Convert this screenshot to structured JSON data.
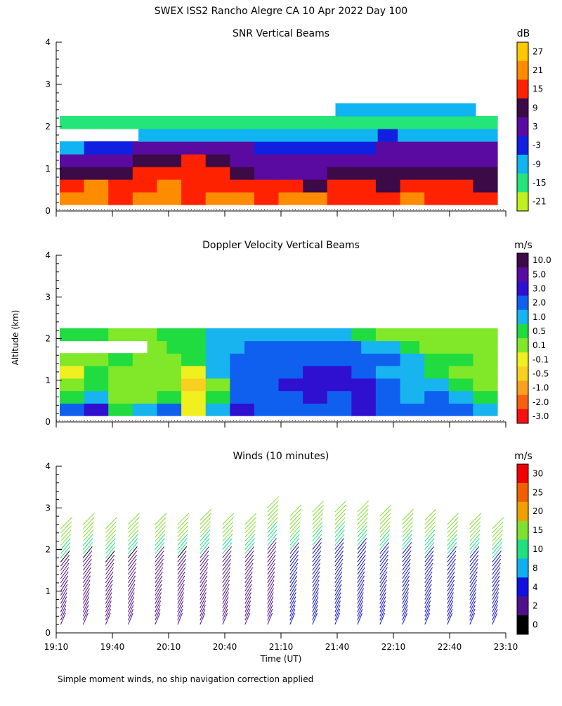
{
  "figure": {
    "title": "SWEX ISS2 Rancho Alegre CA  10 Apr 2022 Day 100",
    "footnote": "Simple moment winds, no ship navigation correction applied",
    "ylabel": "Altitude (km)",
    "xlabel": "Time (UT)",
    "time_ticks": [
      "19:10",
      "19:40",
      "20:10",
      "20:40",
      "21:10",
      "21:40",
      "22:10",
      "22:40",
      "23:10"
    ]
  },
  "chart_data": [
    {
      "type": "heatmap",
      "title": "SNR Vertical Beams",
      "unit": "dB",
      "ylim": [
        0,
        4
      ],
      "yticks": [
        "0",
        "1",
        "2",
        "3",
        "4"
      ],
      "colorbar_labels": [
        "27",
        "21",
        "15",
        "9",
        "3",
        "-3",
        "-9",
        "-15",
        "-21"
      ],
      "colorbar_colors": [
        "#ffc800",
        "#ff8c00",
        "#ff2200",
        "#3c0a46",
        "#5a0aa0",
        "#1020e0",
        "#10b4f0",
        "#24e678",
        "#c0f020"
      ],
      "rows": [
        {
          "alt": 0.3,
          "start": 0,
          "end": 1,
          "vals": [
            0.85,
            0.9,
            0.8,
            0.85,
            0.9,
            0.8,
            0.85,
            0.9,
            0.8,
            0.85,
            0.9,
            0.8,
            0.75,
            0.8,
            0.85,
            0.8,
            0.75,
            0.8
          ]
        },
        {
          "alt": 0.6,
          "start": 0,
          "end": 1,
          "vals": [
            0.78,
            0.82,
            0.75,
            0.8,
            0.85,
            0.8,
            0.78,
            0.7,
            0.72,
            0.7,
            0.68,
            0.7,
            0.72,
            0.68,
            0.7,
            0.72,
            0.7,
            0.68
          ]
        },
        {
          "alt": 0.9,
          "start": 0,
          "end": 1,
          "vals": [
            0.58,
            0.6,
            0.58,
            0.7,
            0.75,
            0.78,
            0.7,
            0.6,
            0.55,
            0.55,
            0.55,
            0.58,
            0.6,
            0.6,
            0.58,
            0.6,
            0.62,
            0.6
          ]
        },
        {
          "alt": 1.2,
          "start": 0,
          "end": 1,
          "vals": [
            0.45,
            0.48,
            0.52,
            0.6,
            0.68,
            0.7,
            0.62,
            0.5,
            0.45,
            0.48,
            0.5,
            0.48,
            0.5,
            0.55,
            0.5,
            0.48,
            0.5,
            0.5
          ]
        },
        {
          "alt": 1.5,
          "start": 0,
          "end": 1,
          "vals": [
            0.3,
            0.32,
            0.4,
            0.5,
            0.55,
            0.52,
            0.5,
            0.45,
            0.4,
            0.35,
            0.35,
            0.4,
            0.42,
            0.45,
            0.45,
            0.48,
            0.45,
            0.45
          ]
        },
        {
          "alt": 1.8,
          "start": 0.18,
          "end": 1,
          "vals": [
            0.2,
            0.25,
            0.25,
            0.25,
            0.3,
            0.3,
            0.3,
            0.25,
            0.25,
            0.3,
            0.3,
            0.3,
            0.35,
            0.3,
            0.3,
            0.3,
            0.3,
            0.3
          ]
        },
        {
          "alt": 2.1,
          "start": 0,
          "end": 1,
          "vals": [
            0.1,
            0.15,
            0.1,
            0.1,
            0.15,
            0.1,
            0.1,
            0.15,
            0.1,
            0.1,
            0.15,
            0.1,
            0.15,
            0.1,
            0.1,
            0.15,
            0.1,
            0.1
          ]
        },
        {
          "alt": 2.4,
          "start": 0.63,
          "end": 0.95,
          "vals": [
            0.22,
            0.25,
            0.3,
            0.22,
            0.28,
            0.3,
            0.25,
            0.22,
            0.2,
            0.22,
            0.2,
            0.22,
            0.25,
            0.2,
            0.22,
            0.2,
            0.22,
            0.2
          ]
        }
      ]
    },
    {
      "type": "heatmap",
      "title": "Doppler Velocity Vertical Beams",
      "unit": "m/s",
      "ylim": [
        0,
        4
      ],
      "yticks": [
        "0",
        "1",
        "2",
        "3",
        "4"
      ],
      "colorbar_labels": [
        "10.0",
        "5.0",
        "3.0",
        "2.0",
        "1.0",
        "0.5",
        "0.1",
        "-0.1",
        "-0.5",
        "-1.0",
        "-2.0",
        "-3.0"
      ],
      "colorbar_colors": [
        "#3c0a46",
        "#5a0aa0",
        "#3010d0",
        "#1060f0",
        "#18b4f0",
        "#20dc40",
        "#80e828",
        "#f0f020",
        "#f8d020",
        "#f8a020",
        "#f86010",
        "#f81010"
      ],
      "rows": [
        {
          "alt": 0.3,
          "start": 0,
          "end": 1,
          "vals": [
            0.7,
            0.78,
            0.55,
            0.6,
            0.72,
            0.4,
            0.62,
            0.85,
            0.7,
            0.72,
            0.75,
            0.72,
            0.78,
            0.7,
            0.72,
            0.75,
            0.7,
            0.65
          ]
        },
        {
          "alt": 0.6,
          "start": 0,
          "end": 1,
          "vals": [
            0.58,
            0.62,
            0.45,
            0.5,
            0.55,
            0.35,
            0.55,
            0.7,
            0.72,
            0.75,
            0.78,
            0.75,
            0.78,
            0.72,
            0.68,
            0.7,
            0.6,
            0.55
          ]
        },
        {
          "alt": 0.9,
          "start": 0,
          "end": 1,
          "vals": [
            0.5,
            0.55,
            0.5,
            0.45,
            0.45,
            0.3,
            0.5,
            0.7,
            0.72,
            0.78,
            0.8,
            0.8,
            0.8,
            0.72,
            0.65,
            0.6,
            0.55,
            0.5
          ]
        },
        {
          "alt": 1.2,
          "start": 0,
          "end": 1,
          "vals": [
            0.4,
            0.55,
            0.5,
            0.45,
            0.5,
            0.4,
            0.6,
            0.7,
            0.7,
            0.75,
            0.78,
            0.8,
            0.75,
            0.68,
            0.6,
            0.55,
            0.5,
            0.45
          ]
        },
        {
          "alt": 1.5,
          "start": 0,
          "end": 1,
          "vals": [
            0.45,
            0.5,
            0.55,
            0.5,
            0.5,
            0.55,
            0.65,
            0.72,
            0.7,
            0.72,
            0.75,
            0.7,
            0.72,
            0.7,
            0.62,
            0.55,
            0.52,
            0.5
          ]
        },
        {
          "alt": 1.8,
          "start": 0.2,
          "end": 1,
          "vals": [
            0.5,
            0.55,
            0.58,
            0.6,
            0.65,
            0.7,
            0.72,
            0.7,
            0.72,
            0.7,
            0.7,
            0.68,
            0.6,
            0.55,
            0.5,
            0.5,
            0.45,
            0.45
          ]
        },
        {
          "alt": 2.1,
          "start": 0,
          "end": 1,
          "vals": [
            0.52,
            0.55,
            0.5,
            0.48,
            0.52,
            0.55,
            0.6,
            0.62,
            0.65,
            0.68,
            0.62,
            0.6,
            0.55,
            0.5,
            0.48,
            0.45,
            0.45,
            0.42
          ]
        }
      ]
    },
    {
      "type": "wind_barbs",
      "title": "Winds (10 minutes)",
      "unit": "m/s",
      "ylim": [
        0,
        4
      ],
      "yticks": [
        "0",
        "1",
        "2",
        "3",
        "4"
      ],
      "colorbar_labels": [
        "30",
        "25",
        "20",
        "15",
        "10",
        "8",
        "4",
        "2",
        "0"
      ],
      "colorbar_colors": [
        "#f00000",
        "#f06000",
        "#f0a000",
        "#80e030",
        "#20e080",
        "#10b0f0",
        "#1010e0",
        "#50108c",
        "#000000"
      ],
      "profiles": [
        {
          "t": 0.01,
          "top": 2.5,
          "speed": 3
        },
        {
          "t": 0.06,
          "top": 2.6,
          "speed": 3
        },
        {
          "t": 0.11,
          "top": 2.55,
          "speed": 3
        },
        {
          "t": 0.16,
          "top": 2.6,
          "speed": 3
        },
        {
          "t": 0.22,
          "top": 2.6,
          "speed": 4
        },
        {
          "t": 0.27,
          "top": 2.6,
          "speed": 3
        },
        {
          "t": 0.32,
          "top": 2.7,
          "speed": 4
        },
        {
          "t": 0.37,
          "top": 2.6,
          "speed": 4
        },
        {
          "t": 0.42,
          "top": 2.6,
          "speed": 4
        },
        {
          "t": 0.47,
          "top": 3.0,
          "speed": 4
        },
        {
          "t": 0.52,
          "top": 2.8,
          "speed": 6
        },
        {
          "t": 0.57,
          "top": 2.9,
          "speed": 6
        },
        {
          "t": 0.62,
          "top": 2.95,
          "speed": 7
        },
        {
          "t": 0.67,
          "top": 2.9,
          "speed": 7
        },
        {
          "t": 0.72,
          "top": 2.8,
          "speed": 8
        },
        {
          "t": 0.77,
          "top": 2.75,
          "speed": 8
        },
        {
          "t": 0.82,
          "top": 2.7,
          "speed": 8
        },
        {
          "t": 0.87,
          "top": 2.65,
          "speed": 8
        },
        {
          "t": 0.92,
          "top": 2.6,
          "speed": 8
        },
        {
          "t": 0.97,
          "top": 2.5,
          "speed": 8
        }
      ]
    }
  ]
}
